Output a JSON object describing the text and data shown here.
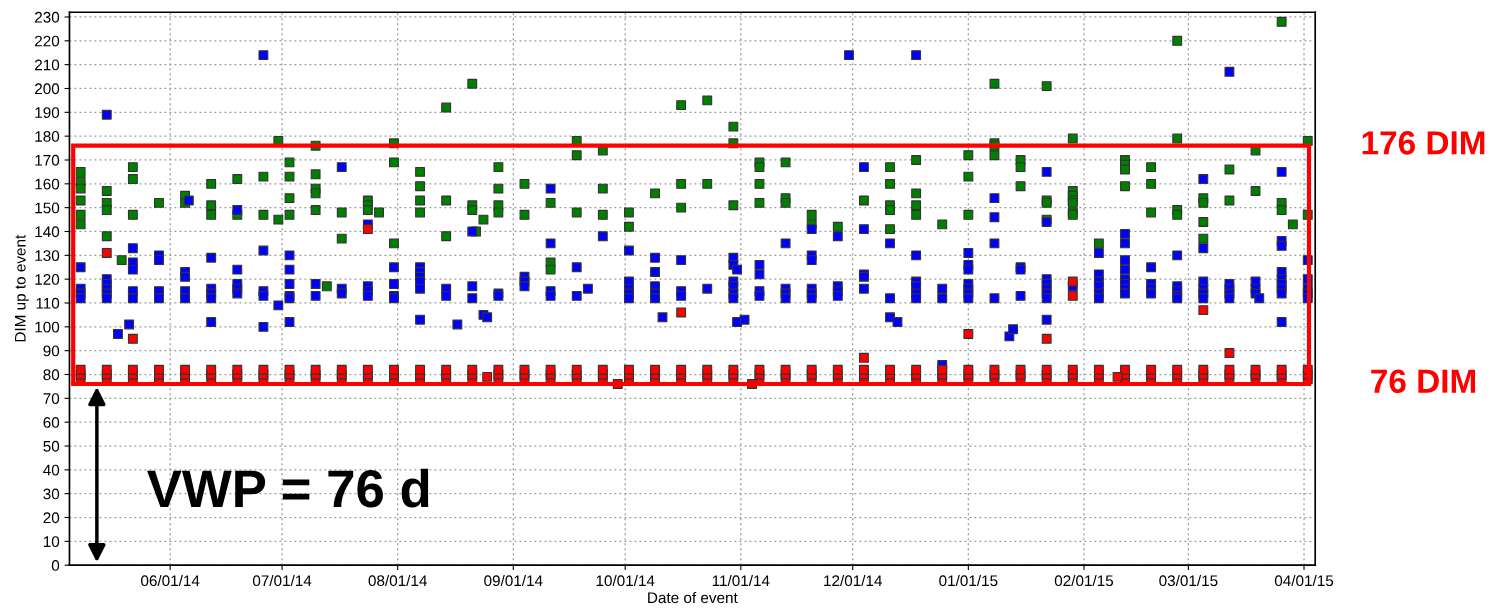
{
  "chart_data": {
    "type": "scatter",
    "xlabel": "Date of event",
    "ylabel": "DIM up to event",
    "xlim": [
      "2014-05-05",
      "2015-04-04"
    ],
    "ylim": [
      0,
      232
    ],
    "xticks": [
      {
        "value": "2014-06-01",
        "label": "06/01/14"
      },
      {
        "value": "2014-07-01",
        "label": "07/01/14"
      },
      {
        "value": "2014-08-01",
        "label": "08/01/14"
      },
      {
        "value": "2014-09-01",
        "label": "09/01/14"
      },
      {
        "value": "2014-10-01",
        "label": "10/01/14"
      },
      {
        "value": "2014-11-01",
        "label": "11/01/14"
      },
      {
        "value": "2014-12-01",
        "label": "12/01/14"
      },
      {
        "value": "2015-01-01",
        "label": "01/01/15"
      },
      {
        "value": "2015-02-01",
        "label": "02/01/15"
      },
      {
        "value": "2015-03-01",
        "label": "03/01/15"
      },
      {
        "value": "2015-04-01",
        "label": "04/01/15"
      }
    ],
    "yticks": [
      0,
      10,
      20,
      30,
      40,
      50,
      60,
      70,
      80,
      90,
      100,
      110,
      120,
      130,
      140,
      150,
      160,
      170,
      180,
      190,
      200,
      210,
      220,
      230
    ],
    "grid": true,
    "marker": "square",
    "series": [
      {
        "color": "#008000",
        "x": [
          "2014-05-08",
          "2014-05-08",
          "2014-05-08",
          "2014-05-08",
          "2014-05-08",
          "2014-05-08",
          "2014-05-15",
          "2014-05-15",
          "2014-05-15",
          "2014-05-15",
          "2014-05-19",
          "2014-05-22",
          "2014-05-22",
          "2014-05-22",
          "2014-05-29",
          "2014-06-05",
          "2014-06-05",
          "2014-06-12",
          "2014-06-12",
          "2014-06-12",
          "2014-06-19",
          "2014-06-19",
          "2014-06-26",
          "2014-06-26",
          "2014-06-30",
          "2014-06-30",
          "2014-07-03",
          "2014-07-03",
          "2014-07-03",
          "2014-07-03",
          "2014-07-10",
          "2014-07-10",
          "2014-07-10",
          "2014-07-10",
          "2014-07-10",
          "2014-07-13",
          "2014-07-17",
          "2014-07-17",
          "2014-07-24",
          "2014-07-24",
          "2014-07-24",
          "2014-07-27",
          "2014-07-31",
          "2014-07-31",
          "2014-07-31",
          "2014-08-07",
          "2014-08-07",
          "2014-08-07",
          "2014-08-07",
          "2014-08-14",
          "2014-08-14",
          "2014-08-14",
          "2014-08-21",
          "2014-08-21",
          "2014-08-21",
          "2014-08-22",
          "2014-08-24",
          "2014-08-28",
          "2014-08-28",
          "2014-08-28",
          "2014-08-28",
          "2014-09-04",
          "2014-09-04",
          "2014-09-11",
          "2014-09-11",
          "2014-09-11",
          "2014-09-18",
          "2014-09-18",
          "2014-09-18",
          "2014-09-25",
          "2014-09-25",
          "2014-09-25",
          "2014-10-02",
          "2014-10-02",
          "2014-10-09",
          "2014-10-16",
          "2014-10-16",
          "2014-10-16",
          "2014-10-23",
          "2014-10-23",
          "2014-10-30",
          "2014-10-30",
          "2014-10-30",
          "2014-11-06",
          "2014-11-06",
          "2014-11-06",
          "2014-11-06",
          "2014-11-13",
          "2014-11-13",
          "2014-11-13",
          "2014-11-20",
          "2014-11-20",
          "2014-11-27",
          "2014-12-04",
          "2014-12-11",
          "2014-12-11",
          "2014-12-11",
          "2014-12-11",
          "2014-12-11",
          "2014-12-18",
          "2014-12-18",
          "2014-12-18",
          "2014-12-18",
          "2014-12-25",
          "2015-01-01",
          "2015-01-01",
          "2015-01-01",
          "2015-01-08",
          "2015-01-08",
          "2015-01-08",
          "2015-01-08",
          "2015-01-15",
          "2015-01-15",
          "2015-01-15",
          "2015-01-22",
          "2015-01-22",
          "2015-01-22",
          "2015-01-22",
          "2015-01-29",
          "2015-01-29",
          "2015-01-29",
          "2015-01-29",
          "2015-01-29",
          "2015-01-29",
          "2015-01-29",
          "2015-02-05",
          "2015-02-12",
          "2015-02-12",
          "2015-02-12",
          "2015-02-12",
          "2015-02-19",
          "2015-02-19",
          "2015-02-19",
          "2015-02-26",
          "2015-02-26",
          "2015-02-26",
          "2015-02-26",
          "2015-03-05",
          "2015-03-05",
          "2015-03-05",
          "2015-03-05",
          "2015-03-12",
          "2015-03-12",
          "2015-03-19",
          "2015-03-19",
          "2015-03-26",
          "2015-03-26",
          "2015-03-26",
          "2015-03-29",
          "2015-04-02",
          "2015-04-02"
        ],
        "values": [
          165,
          161,
          158,
          153,
          147,
          143,
          157,
          152,
          149,
          138,
          128,
          167,
          162,
          147,
          152,
          155,
          152,
          160,
          151,
          147,
          162,
          147,
          163,
          147,
          178,
          145,
          169,
          163,
          154,
          147,
          176,
          164,
          158,
          156,
          149,
          117,
          148,
          137,
          153,
          151,
          149,
          148,
          177,
          169,
          135,
          165,
          159,
          153,
          148,
          192,
          153,
          138,
          202,
          151,
          149,
          140,
          145,
          167,
          158,
          151,
          148,
          160,
          147,
          152,
          127,
          124,
          178,
          172,
          148,
          174,
          158,
          147,
          148,
          142,
          156,
          193,
          160,
          150,
          195,
          160,
          184,
          177,
          151,
          169,
          167,
          160,
          152,
          169,
          154,
          152,
          147,
          143,
          142,
          153,
          167,
          160,
          151,
          149,
          141,
          170,
          156,
          151,
          147,
          143,
          172,
          163,
          147,
          202,
          177,
          176,
          172,
          170,
          167,
          159,
          201,
          153,
          152,
          145,
          179,
          157,
          155,
          153,
          152,
          148,
          147,
          135,
          170,
          168,
          166,
          159,
          167,
          160,
          148,
          220,
          179,
          149,
          147,
          154,
          152,
          144,
          137,
          166,
          153,
          174,
          157,
          228,
          152,
          149,
          143,
          178,
          147
        ]
      },
      {
        "color": "#0000ff",
        "x": [
          "2014-05-08",
          "2014-05-08",
          "2014-05-08",
          "2014-05-08",
          "2014-05-15",
          "2014-05-15",
          "2014-05-15",
          "2014-05-15",
          "2014-05-15",
          "2014-05-15",
          "2014-05-18",
          "2014-05-21",
          "2014-05-22",
          "2014-05-22",
          "2014-05-22",
          "2014-05-22",
          "2014-05-22",
          "2014-05-29",
          "2014-05-29",
          "2014-05-29",
          "2014-05-29",
          "2014-06-05",
          "2014-06-05",
          "2014-06-05",
          "2014-06-05",
          "2014-06-06",
          "2014-06-12",
          "2014-06-12",
          "2014-06-12",
          "2014-06-12",
          "2014-06-12",
          "2014-06-19",
          "2014-06-19",
          "2014-06-19",
          "2014-06-19",
          "2014-06-19",
          "2014-06-26",
          "2014-06-26",
          "2014-06-26",
          "2014-06-26",
          "2014-06-26",
          "2014-06-30",
          "2014-07-03",
          "2014-07-03",
          "2014-07-03",
          "2014-07-03",
          "2014-07-03",
          "2014-07-03",
          "2014-07-10",
          "2014-07-10",
          "2014-07-17",
          "2014-07-17",
          "2014-07-17",
          "2014-07-24",
          "2014-07-24",
          "2014-07-24",
          "2014-07-24",
          "2014-07-31",
          "2014-07-31",
          "2014-07-31",
          "2014-07-31",
          "2014-08-07",
          "2014-08-07",
          "2014-08-07",
          "2014-08-07",
          "2014-08-07",
          "2014-08-07",
          "2014-08-14",
          "2014-08-14",
          "2014-08-17",
          "2014-08-21",
          "2014-08-21",
          "2014-08-21",
          "2014-08-24",
          "2014-08-25",
          "2014-08-28",
          "2014-08-28",
          "2014-09-04",
          "2014-09-04",
          "2014-09-04",
          "2014-09-11",
          "2014-09-11",
          "2014-09-11",
          "2014-09-11",
          "2014-09-18",
          "2014-09-18",
          "2014-09-21",
          "2014-09-25",
          "2014-10-02",
          "2014-10-02",
          "2014-10-02",
          "2014-10-02",
          "2014-10-02",
          "2014-10-09",
          "2014-10-09",
          "2014-10-09",
          "2014-10-09",
          "2014-10-09",
          "2014-10-11",
          "2014-10-16",
          "2014-10-16",
          "2014-10-16",
          "2014-10-23",
          "2014-10-30",
          "2014-10-30",
          "2014-10-30",
          "2014-10-30",
          "2014-10-30",
          "2014-10-30",
          "2014-10-31",
          "2014-10-31",
          "2014-11-02",
          "2014-11-06",
          "2014-11-06",
          "2014-11-06",
          "2014-11-06",
          "2014-11-13",
          "2014-11-13",
          "2014-11-13",
          "2014-11-13",
          "2014-11-20",
          "2014-11-20",
          "2014-11-20",
          "2014-11-20",
          "2014-11-20",
          "2014-11-20",
          "2014-11-27",
          "2014-11-27",
          "2014-11-27",
          "2014-11-27",
          "2014-11-30",
          "2014-12-04",
          "2014-12-04",
          "2014-12-04",
          "2014-12-04",
          "2014-12-04",
          "2014-12-11",
          "2014-12-11",
          "2014-12-11",
          "2014-12-13",
          "2014-12-18",
          "2014-12-18",
          "2014-12-18",
          "2014-12-18",
          "2014-12-18",
          "2014-12-18",
          "2014-12-25",
          "2014-12-25",
          "2014-12-25",
          "2015-01-01",
          "2015-01-01",
          "2015-01-01",
          "2015-01-01",
          "2015-01-01",
          "2015-01-01",
          "2015-01-01",
          "2015-01-08",
          "2015-01-08",
          "2015-01-08",
          "2015-01-08",
          "2015-01-15",
          "2015-01-15",
          "2015-01-15",
          "2015-01-12",
          "2015-01-13",
          "2015-01-22",
          "2015-01-22",
          "2015-01-22",
          "2015-01-22",
          "2015-01-22",
          "2015-01-22",
          "2015-01-22",
          "2015-01-22",
          "2015-01-29",
          "2015-02-05",
          "2015-02-05",
          "2015-02-05",
          "2015-02-05",
          "2015-02-05",
          "2015-02-05",
          "2015-02-12",
          "2015-02-12",
          "2015-02-12",
          "2015-02-12",
          "2015-02-12",
          "2015-02-12",
          "2015-02-12",
          "2015-02-12",
          "2015-02-19",
          "2015-02-19",
          "2015-02-19",
          "2015-02-19",
          "2015-02-26",
          "2015-02-26",
          "2015-02-26",
          "2015-02-26",
          "2015-02-26",
          "2015-03-05",
          "2015-03-05",
          "2015-03-05",
          "2015-03-05",
          "2015-03-05",
          "2015-03-05",
          "2015-03-12",
          "2015-03-12",
          "2015-03-12",
          "2015-03-12",
          "2015-03-12",
          "2015-03-19",
          "2015-03-19",
          "2015-03-19",
          "2015-03-20",
          "2015-03-26",
          "2015-03-26",
          "2015-03-26",
          "2015-03-26",
          "2015-03-26",
          "2015-03-26",
          "2015-03-26",
          "2015-03-26",
          "2015-03-26",
          "2015-04-02",
          "2015-04-02",
          "2015-04-02",
          "2015-04-02",
          "2015-04-02"
        ],
        "values": [
          125,
          116,
          114,
          112,
          189,
          120,
          118,
          116,
          114,
          112,
          97,
          101,
          133,
          127,
          124,
          115,
          112,
          130,
          128,
          115,
          112,
          123,
          121,
          115,
          112,
          153,
          129,
          116,
          114,
          112,
          102,
          149,
          124,
          118,
          116,
          114,
          214,
          132,
          115,
          113,
          100,
          109,
          130,
          124,
          118,
          113,
          112,
          102,
          118,
          113,
          167,
          116,
          114,
          143,
          117,
          115,
          113,
          125,
          118,
          113,
          112,
          125,
          123,
          121,
          119,
          116,
          103,
          116,
          113,
          101,
          140,
          117,
          112,
          105,
          104,
          114,
          113,
          121,
          119,
          117,
          158,
          135,
          115,
          113,
          125,
          113,
          116,
          138,
          132,
          119,
          116,
          114,
          112,
          129,
          123,
          117,
          114,
          112,
          104,
          128,
          115,
          113,
          116,
          129,
          126,
          119,
          117,
          114,
          112,
          124,
          102,
          103,
          126,
          122,
          115,
          113,
          135,
          116,
          114,
          112,
          141,
          130,
          128,
          116,
          114,
          112,
          138,
          117,
          115,
          113,
          214,
          167,
          141,
          122,
          121,
          116,
          135,
          112,
          104,
          102,
          214,
          130,
          119,
          117,
          114,
          112,
          116,
          112,
          84,
          131,
          126,
          124,
          118,
          116,
          114,
          112,
          154,
          146,
          135,
          112,
          125,
          124,
          113,
          96,
          99,
          165,
          144,
          120,
          118,
          116,
          114,
          112,
          103,
          117,
          131,
          122,
          119,
          117,
          114,
          112,
          139,
          135,
          128,
          124,
          120,
          118,
          116,
          114,
          125,
          118,
          116,
          114,
          130,
          117,
          115,
          113,
          112,
          162,
          133,
          119,
          116,
          114,
          112,
          207,
          118,
          116,
          114,
          112,
          119,
          116,
          114,
          112,
          165,
          136,
          134,
          123,
          120,
          118,
          116,
          114,
          102,
          128,
          120,
          116,
          114,
          112
        ]
      },
      {
        "color": "#ff0000",
        "x": [
          "2014-05-08",
          "2014-05-08",
          "2014-05-08",
          "2014-05-15",
          "2014-05-15",
          "2014-05-15",
          "2014-05-22",
          "2014-05-22",
          "2014-05-22",
          "2014-05-29",
          "2014-05-29",
          "2014-05-29",
          "2014-06-05",
          "2014-06-05",
          "2014-06-05",
          "2014-06-12",
          "2014-06-12",
          "2014-06-12",
          "2014-06-19",
          "2014-06-19",
          "2014-06-19",
          "2014-06-26",
          "2014-06-26",
          "2014-06-26",
          "2014-07-03",
          "2014-07-03",
          "2014-07-03",
          "2014-07-10",
          "2014-07-10",
          "2014-07-10",
          "2014-07-17",
          "2014-07-17",
          "2014-07-17",
          "2014-07-24",
          "2014-07-24",
          "2014-07-24",
          "2014-07-31",
          "2014-07-31",
          "2014-07-31",
          "2014-08-07",
          "2014-08-07",
          "2014-08-07",
          "2014-08-14",
          "2014-08-14",
          "2014-08-14",
          "2014-08-21",
          "2014-08-21",
          "2014-08-21",
          "2014-08-28",
          "2014-08-28",
          "2014-08-28",
          "2014-09-04",
          "2014-09-04",
          "2014-09-04",
          "2014-09-11",
          "2014-09-11",
          "2014-09-11",
          "2014-09-18",
          "2014-09-18",
          "2014-09-18",
          "2014-09-25",
          "2014-09-25",
          "2014-09-25",
          "2014-10-02",
          "2014-10-02",
          "2014-10-02",
          "2014-10-09",
          "2014-10-09",
          "2014-10-09",
          "2014-10-16",
          "2014-10-16",
          "2014-10-16",
          "2014-10-23",
          "2014-10-23",
          "2014-10-23",
          "2014-10-30",
          "2014-10-30",
          "2014-10-30",
          "2014-11-06",
          "2014-11-06",
          "2014-11-06",
          "2014-11-13",
          "2014-11-13",
          "2014-11-13",
          "2014-11-20",
          "2014-11-20",
          "2014-11-20",
          "2014-11-27",
          "2014-11-27",
          "2014-11-27",
          "2014-12-04",
          "2014-12-04",
          "2014-12-04",
          "2014-12-11",
          "2014-12-11",
          "2014-12-11",
          "2014-12-18",
          "2014-12-18",
          "2014-12-18",
          "2014-12-25",
          "2014-12-25",
          "2014-12-25",
          "2015-01-01",
          "2015-01-01",
          "2015-01-01",
          "2015-01-08",
          "2015-01-08",
          "2015-01-08",
          "2015-01-15",
          "2015-01-15",
          "2015-01-15",
          "2015-01-22",
          "2015-01-22",
          "2015-01-22",
          "2015-01-29",
          "2015-01-29",
          "2015-01-29",
          "2015-02-05",
          "2015-02-05",
          "2015-02-05",
          "2015-02-12",
          "2015-02-12",
          "2015-02-12",
          "2015-02-19",
          "2015-02-19",
          "2015-02-19",
          "2015-02-26",
          "2015-02-26",
          "2015-02-26",
          "2015-03-05",
          "2015-03-05",
          "2015-03-05",
          "2015-03-12",
          "2015-03-12",
          "2015-03-12",
          "2015-03-19",
          "2015-03-19",
          "2015-03-19",
          "2015-03-26",
          "2015-03-26",
          "2015-03-26",
          "2015-04-02",
          "2015-04-02",
          "2015-04-02",
          "2014-05-15",
          "2014-05-22",
          "2014-07-24",
          "2014-08-25",
          "2014-09-29",
          "2014-10-16",
          "2014-11-04",
          "2014-12-04",
          "2015-01-01",
          "2015-01-22",
          "2015-01-29",
          "2015-01-29",
          "2015-02-10",
          "2015-03-05",
          "2015-03-12"
        ],
        "values": [
          78,
          80,
          82,
          78,
          80,
          82,
          78,
          80,
          82,
          78,
          80,
          82,
          78,
          80,
          82,
          78,
          80,
          82,
          78,
          80,
          82,
          78,
          80,
          82,
          78,
          80,
          82,
          78,
          80,
          82,
          78,
          80,
          82,
          78,
          80,
          82,
          78,
          80,
          82,
          78,
          80,
          82,
          78,
          80,
          82,
          78,
          80,
          82,
          78,
          80,
          82,
          78,
          80,
          82,
          78,
          80,
          82,
          78,
          80,
          82,
          78,
          80,
          82,
          78,
          80,
          82,
          78,
          80,
          82,
          78,
          80,
          82,
          78,
          80,
          82,
          78,
          80,
          82,
          78,
          80,
          82,
          78,
          80,
          82,
          78,
          80,
          82,
          78,
          80,
          82,
          78,
          80,
          82,
          78,
          80,
          82,
          78,
          80,
          82,
          78,
          80,
          82,
          78,
          80,
          82,
          78,
          80,
          82,
          78,
          80,
          82,
          78,
          80,
          82,
          78,
          80,
          82,
          78,
          80,
          82,
          78,
          80,
          82,
          78,
          80,
          82,
          78,
          80,
          82,
          78,
          80,
          82,
          78,
          80,
          82,
          78,
          80,
          82,
          78,
          80,
          82,
          78,
          80,
          82,
          131,
          95,
          141,
          79,
          76,
          106,
          76,
          87,
          97,
          95,
          119,
          113,
          79,
          107,
          89
        ]
      }
    ],
    "ref_lines": [
      {
        "axis": "y",
        "value": 176,
        "label": "176 DIM",
        "color": "#ff0000"
      },
      {
        "axis": "y",
        "value": 76,
        "label": "76 DIM",
        "color": "#ff0000"
      }
    ],
    "annotations": [
      "VWP = 76 d"
    ]
  }
}
